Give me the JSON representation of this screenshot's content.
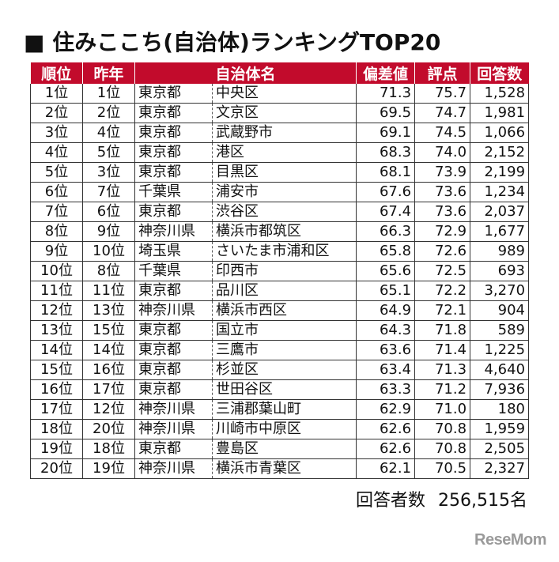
{
  "title": "■ 住みここち(自治体)ランキングTOP20",
  "headers": {
    "rank": "順位",
    "last_year": "昨年",
    "municipality": "自治体名",
    "deviation": "偏差値",
    "score": "評点",
    "responses": "回答数"
  },
  "rows": [
    {
      "rank": "1位",
      "last": "1位",
      "pref": "東京都",
      "city": "中央区",
      "dev": "71.3",
      "score": "75.7",
      "count": "1,528"
    },
    {
      "rank": "2位",
      "last": "2位",
      "pref": "東京都",
      "city": "文京区",
      "dev": "69.5",
      "score": "74.7",
      "count": "1,981"
    },
    {
      "rank": "3位",
      "last": "4位",
      "pref": "東京都",
      "city": "武蔵野市",
      "dev": "69.1",
      "score": "74.5",
      "count": "1,066"
    },
    {
      "rank": "4位",
      "last": "5位",
      "pref": "東京都",
      "city": "港区",
      "dev": "68.3",
      "score": "74.0",
      "count": "2,152"
    },
    {
      "rank": "5位",
      "last": "3位",
      "pref": "東京都",
      "city": "目黒区",
      "dev": "68.1",
      "score": "73.9",
      "count": "2,199"
    },
    {
      "rank": "6位",
      "last": "7位",
      "pref": "千葉県",
      "city": "浦安市",
      "dev": "67.6",
      "score": "73.6",
      "count": "1,234"
    },
    {
      "rank": "7位",
      "last": "6位",
      "pref": "東京都",
      "city": "渋谷区",
      "dev": "67.4",
      "score": "73.6",
      "count": "2,037"
    },
    {
      "rank": "8位",
      "last": "9位",
      "pref": "神奈川県",
      "city": "横浜市都筑区",
      "dev": "66.3",
      "score": "72.9",
      "count": "1,677"
    },
    {
      "rank": "9位",
      "last": "10位",
      "pref": "埼玉県",
      "city": "さいたま市浦和区",
      "dev": "65.8",
      "score": "72.6",
      "count": "989"
    },
    {
      "rank": "10位",
      "last": "8位",
      "pref": "千葉県",
      "city": "印西市",
      "dev": "65.6",
      "score": "72.5",
      "count": "693"
    },
    {
      "rank": "11位",
      "last": "11位",
      "pref": "東京都",
      "city": "品川区",
      "dev": "65.1",
      "score": "72.2",
      "count": "3,270"
    },
    {
      "rank": "12位",
      "last": "13位",
      "pref": "神奈川県",
      "city": "横浜市西区",
      "dev": "64.9",
      "score": "72.1",
      "count": "904"
    },
    {
      "rank": "13位",
      "last": "15位",
      "pref": "東京都",
      "city": "国立市",
      "dev": "64.3",
      "score": "71.8",
      "count": "589"
    },
    {
      "rank": "14位",
      "last": "14位",
      "pref": "東京都",
      "city": "三鷹市",
      "dev": "63.6",
      "score": "71.4",
      "count": "1,225"
    },
    {
      "rank": "15位",
      "last": "16位",
      "pref": "東京都",
      "city": "杉並区",
      "dev": "63.4",
      "score": "71.3",
      "count": "4,640"
    },
    {
      "rank": "16位",
      "last": "17位",
      "pref": "東京都",
      "city": "世田谷区",
      "dev": "63.3",
      "score": "71.2",
      "count": "7,936"
    },
    {
      "rank": "17位",
      "last": "12位",
      "pref": "神奈川県",
      "city": "三浦郡葉山町",
      "dev": "62.9",
      "score": "71.0",
      "count": "180"
    },
    {
      "rank": "18位",
      "last": "20位",
      "pref": "神奈川県",
      "city": "川崎市中原区",
      "dev": "62.6",
      "score": "70.8",
      "count": "1,959"
    },
    {
      "rank": "19位",
      "last": "18位",
      "pref": "東京都",
      "city": "豊島区",
      "dev": "62.6",
      "score": "70.8",
      "count": "2,505"
    },
    {
      "rank": "20位",
      "last": "19位",
      "pref": "神奈川県",
      "city": "横浜市青葉区",
      "dev": "62.1",
      "score": "70.5",
      "count": "2,327"
    }
  ],
  "footer": {
    "label": "回答者数",
    "value": "256,515名"
  },
  "logo": "ReseMom"
}
